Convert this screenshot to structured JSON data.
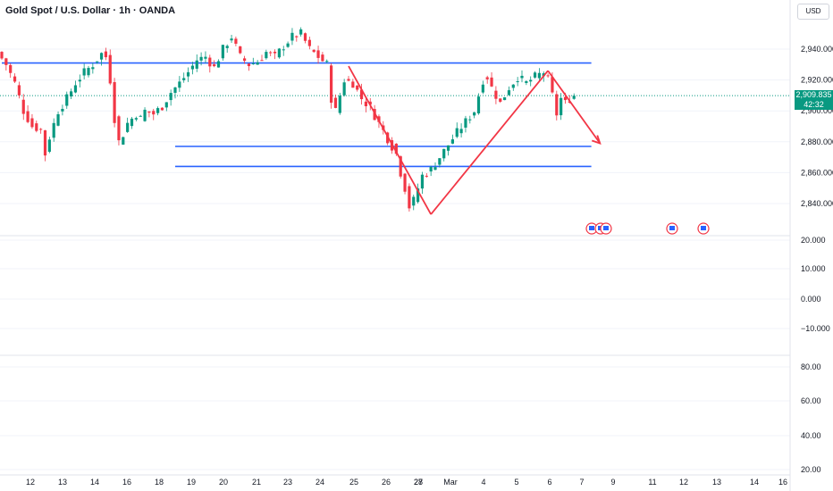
{
  "header": {
    "title": "Gold Spot / U.S. Dollar · 1h · OANDA"
  },
  "currency_button": {
    "label": "USD"
  },
  "price_badge": {
    "price": "2,909.835",
    "countdown": "42:32"
  },
  "colors": {
    "up": "#089981",
    "down": "#f23645",
    "hline": "#2962ff",
    "pattern": "#f23645",
    "dotted": "#089981"
  },
  "chart_data": [
    {
      "type": "candlestick",
      "title": "Gold Spot / U.S. Dollar · 1h · OANDA",
      "x_tick_labels": [
        "12",
        "13",
        "14",
        "16",
        "18",
        "19",
        "20",
        "21",
        "23",
        "24",
        "25",
        "26",
        "27",
        "28",
        "Mar",
        "4",
        "5",
        "6",
        "7",
        "9",
        "11",
        "12",
        "13",
        "14",
        "16"
      ],
      "y_tick_labels": [
        "2,940.000",
        "2,920.000",
        "2,900.000",
        "2,880.000",
        "2,860.000",
        "2,840.000"
      ],
      "ylim": [
        2820,
        2975
      ],
      "last_price": 2909.835,
      "path_points": [
        [
          0,
          2938
        ],
        [
          2,
          2930
        ],
        [
          4,
          2918
        ],
        [
          6,
          2900
        ],
        [
          8,
          2890
        ],
        [
          10,
          2888
        ],
        [
          11,
          2872
        ],
        [
          12,
          2883
        ],
        [
          14,
          2900
        ],
        [
          16,
          2908
        ],
        [
          18,
          2918
        ],
        [
          20,
          2925
        ],
        [
          22,
          2930
        ],
        [
          24,
          2937
        ],
        [
          25,
          2935
        ],
        [
          26,
          2920
        ],
        [
          27,
          2895
        ],
        [
          28,
          2880
        ],
        [
          29,
          2885
        ],
        [
          30,
          2892
        ],
        [
          32,
          2898
        ],
        [
          33,
          2895
        ],
        [
          34,
          2900
        ],
        [
          36,
          2898
        ],
        [
          38,
          2903
        ],
        [
          40,
          2912
        ],
        [
          42,
          2918
        ],
        [
          44,
          2925
        ],
        [
          46,
          2933
        ],
        [
          48,
          2935
        ],
        [
          50,
          2928
        ],
        [
          52,
          2940
        ],
        [
          54,
          2948
        ],
        [
          56,
          2935
        ],
        [
          58,
          2930
        ],
        [
          60,
          2932
        ],
        [
          62,
          2938
        ],
        [
          64,
          2935
        ],
        [
          66,
          2942
        ],
        [
          68,
          2948
        ],
        [
          70,
          2950
        ],
        [
          72,
          2940
        ],
        [
          74,
          2935
        ],
        [
          76,
          2930
        ],
        [
          77,
          2908
        ],
        [
          78,
          2900
        ],
        [
          80,
          2920
        ],
        [
          82,
          2918
        ],
        [
          84,
          2908
        ],
        [
          86,
          2902
        ],
        [
          88,
          2892
        ],
        [
          90,
          2882
        ],
        [
          92,
          2872
        ],
        [
          93,
          2860
        ],
        [
          94,
          2850
        ],
        [
          95,
          2838
        ],
        [
          96,
          2842
        ],
        [
          97,
          2850
        ],
        [
          98,
          2858
        ],
        [
          100,
          2862
        ],
        [
          102,
          2870
        ],
        [
          104,
          2878
        ],
        [
          106,
          2886
        ],
        [
          108,
          2893
        ],
        [
          110,
          2900
        ],
        [
          112,
          2920
        ],
        [
          113,
          2922
        ],
        [
          114,
          2915
        ],
        [
          116,
          2905
        ],
        [
          118,
          2915
        ],
        [
          120,
          2922
        ],
        [
          122,
          2918
        ],
        [
          124,
          2922
        ],
        [
          126,
          2925
        ],
        [
          127,
          2920
        ],
        [
          128,
          2910
        ],
        [
          129,
          2898
        ],
        [
          130,
          2908
        ],
        [
          131,
          2905
        ],
        [
          132,
          2908
        ],
        [
          133,
          2910
        ]
      ],
      "horizontal_lines": [
        {
          "y": 2931,
          "from_x": 0,
          "to_x": 136
        },
        {
          "y": 2877,
          "from_x": 40,
          "to_x": 136
        },
        {
          "y": 2864,
          "from_x": 40,
          "to_x": 136
        }
      ],
      "pattern_lines": [
        [
          [
            80,
            2929
          ],
          [
            99,
            2833
          ]
        ],
        [
          [
            99,
            2833
          ],
          [
            126,
            2926
          ]
        ],
        [
          [
            126,
            2926
          ],
          [
            138,
            2879
          ]
        ]
      ],
      "oscillator": {
        "y_tick_labels": [
          "20.000",
          "10.000",
          "0.000",
          "−10.000"
        ],
        "ylim": [
          -15,
          22
        ]
      },
      "lower_panel": {
        "y_tick_labels": [
          "80.00",
          "60.00",
          "40.00",
          "20.00"
        ],
        "ylim": [
          15,
          95
        ]
      }
    }
  ]
}
